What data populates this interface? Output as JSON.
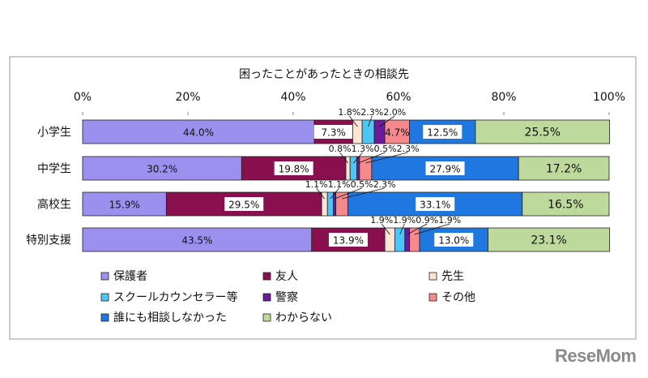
{
  "chart_data": {
    "type": "bar",
    "orientation": "horizontal",
    "stacked": true,
    "title": "困ったことがあったときの相談先",
    "xlim": [
      0,
      100
    ],
    "x_ticks": [
      "0%",
      "20%",
      "40%",
      "60%",
      "80%",
      "100%"
    ],
    "grid": false,
    "legend_position": "bottom",
    "categories": [
      "小学生",
      "中学生",
      "高校生",
      "特別支援"
    ],
    "series": [
      {
        "name": "保護者",
        "color": "#9c90ee",
        "values": [
          44.0,
          30.2,
          15.9,
          43.5
        ]
      },
      {
        "name": "友人",
        "color": "#8a0f4e",
        "values": [
          7.3,
          19.8,
          29.5,
          13.9
        ]
      },
      {
        "name": "先生",
        "color": "#fde5d5",
        "values": [
          1.8,
          0.8,
          1.1,
          1.9
        ]
      },
      {
        "name": "スクールカウンセラー等",
        "color": "#4ec6f5",
        "values": [
          2.3,
          1.3,
          1.1,
          1.9
        ]
      },
      {
        "name": "警察",
        "color": "#6b1a9b",
        "values": [
          2.0,
          0.5,
          0.5,
          0.9
        ]
      },
      {
        "name": "その他",
        "color": "#f5898b",
        "values": [
          4.7,
          2.3,
          2.3,
          1.9
        ]
      },
      {
        "name": "誰にも相談しなかった",
        "color": "#1f78e0",
        "values": [
          12.5,
          27.9,
          33.1,
          13.0
        ]
      },
      {
        "name": "わからない",
        "color": "#bdd99b",
        "values": [
          25.5,
          17.2,
          16.5,
          23.1
        ]
      }
    ]
  },
  "watermark": "ReseMom"
}
